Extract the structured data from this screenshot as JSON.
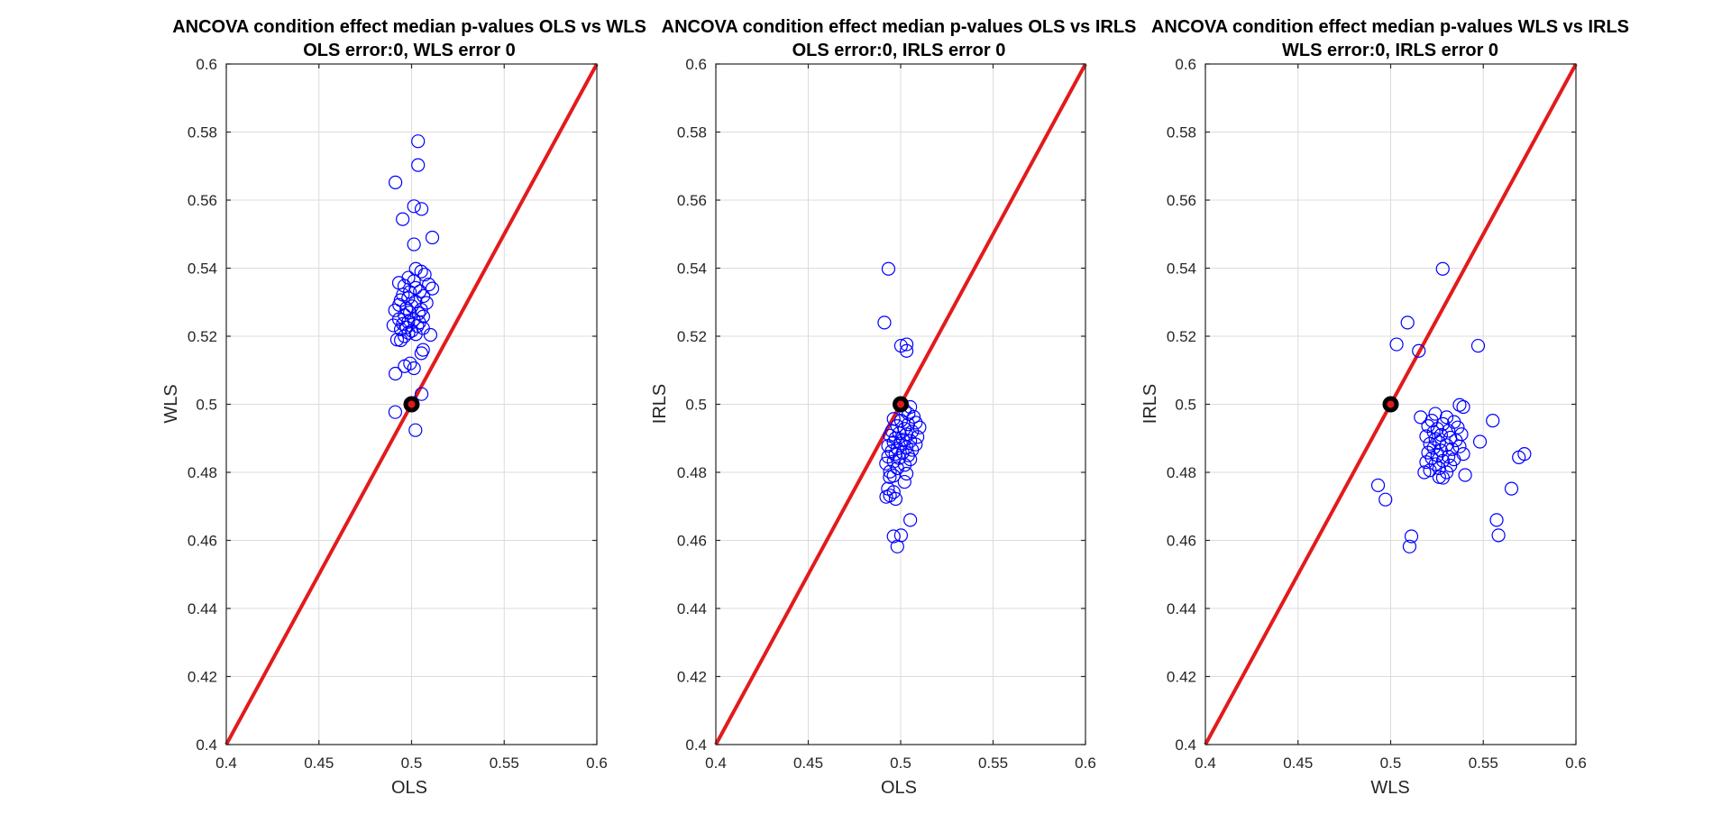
{
  "chart_data": [
    {
      "type": "scatter",
      "title": "ANCOVA condition effect median p-values OLS vs WLS",
      "subtitle": "OLS error:0, WLS error 0",
      "xlabel": "OLS",
      "ylabel": "WLS",
      "xlim": [
        0.4,
        0.6
      ],
      "ylim": [
        0.4,
        0.6
      ],
      "xticks": [
        "0.4",
        "0.45",
        "0.5",
        "0.55",
        "0.6"
      ],
      "yticks": [
        "0.4",
        "0.42",
        "0.44",
        "0.46",
        "0.48",
        "0.5",
        "0.52",
        "0.54",
        "0.56",
        "0.58",
        "0.6"
      ],
      "grid": true,
      "reference_line": {
        "from": [
          0.4,
          0.4
        ],
        "to": [
          0.6,
          0.6
        ],
        "color": "#e31a1c"
      },
      "highlight_point": {
        "x": 0.5,
        "y": 0.5
      },
      "marker_color": "#0000ff",
      "points": [
        [
          0.5035,
          0.5773
        ],
        [
          0.5035,
          0.5703
        ],
        [
          0.4913,
          0.5652
        ],
        [
          0.5013,
          0.5582
        ],
        [
          0.5054,
          0.5574
        ],
        [
          0.4952,
          0.5544
        ],
        [
          0.5112,
          0.549
        ],
        [
          0.5013,
          0.547
        ],
        [
          0.5023,
          0.5398
        ],
        [
          0.5052,
          0.539
        ],
        [
          0.5071,
          0.5381
        ],
        [
          0.4983,
          0.5372
        ],
        [
          0.5013,
          0.5362
        ],
        [
          0.4932,
          0.5357
        ],
        [
          0.5093,
          0.5352
        ],
        [
          0.4961,
          0.5348
        ],
        [
          0.5022,
          0.5342
        ],
        [
          0.5112,
          0.534
        ],
        [
          0.5045,
          0.5332
        ],
        [
          0.4991,
          0.533
        ],
        [
          0.4953,
          0.5322
        ],
        [
          0.5064,
          0.5318
        ],
        [
          0.4982,
          0.5312
        ],
        [
          0.4941,
          0.5306
        ],
        [
          0.5021,
          0.5302
        ],
        [
          0.5081,
          0.5298
        ],
        [
          0.4933,
          0.5292
        ],
        [
          0.5002,
          0.5288
        ],
        [
          0.4972,
          0.5282
        ],
        [
          0.5052,
          0.5278
        ],
        [
          0.4911,
          0.5276
        ],
        [
          0.4991,
          0.527
        ],
        [
          0.5038,
          0.5267
        ],
        [
          0.4962,
          0.5262
        ],
        [
          0.5063,
          0.5258
        ],
        [
          0.4932,
          0.525
        ],
        [
          0.5012,
          0.5248
        ],
        [
          0.4982,
          0.5242
        ],
        [
          0.5042,
          0.524
        ],
        [
          0.4953,
          0.5236
        ],
        [
          0.4902,
          0.5232
        ],
        [
          0.5031,
          0.523
        ],
        [
          0.4973,
          0.5226
        ],
        [
          0.5062,
          0.5224
        ],
        [
          0.4942,
          0.522
        ],
        [
          0.5001,
          0.5216
        ],
        [
          0.4983,
          0.521
        ],
        [
          0.5023,
          0.5206
        ],
        [
          0.5102,
          0.5204
        ],
        [
          0.4962,
          0.52
        ],
        [
          0.4922,
          0.519
        ],
        [
          0.4942,
          0.5188
        ],
        [
          0.5062,
          0.516
        ],
        [
          0.5053,
          0.515
        ],
        [
          0.4992,
          0.512
        ],
        [
          0.4963,
          0.5112
        ],
        [
          0.5013,
          0.5106
        ],
        [
          0.4913,
          0.509
        ],
        [
          0.5054,
          0.503
        ],
        [
          0.4912,
          0.4977
        ],
        [
          0.5021,
          0.4924
        ]
      ]
    },
    {
      "type": "scatter",
      "title": "ANCOVA condition effect median p-values OLS vs IRLS",
      "subtitle": "OLS error:0, IRLS error 0",
      "xlabel": "OLS",
      "ylabel": "IRLS",
      "xlim": [
        0.4,
        0.6
      ],
      "ylim": [
        0.4,
        0.6
      ],
      "xticks": [
        "0.4",
        "0.45",
        "0.5",
        "0.55",
        "0.6"
      ],
      "yticks": [
        "0.4",
        "0.42",
        "0.44",
        "0.46",
        "0.48",
        "0.5",
        "0.52",
        "0.54",
        "0.56",
        "0.58",
        "0.6"
      ],
      "grid": true,
      "reference_line": {
        "from": [
          0.4,
          0.4
        ],
        "to": [
          0.6,
          0.6
        ],
        "color": "#e31a1c"
      },
      "highlight_point": {
        "x": 0.5,
        "y": 0.5
      },
      "marker_color": "#0000ff",
      "points": [
        [
          0.4934,
          0.5398
        ],
        [
          0.4912,
          0.524
        ],
        [
          0.5032,
          0.5176
        ],
        [
          0.5002,
          0.5172
        ],
        [
          0.5032,
          0.5157
        ],
        [
          0.5052,
          0.4992
        ],
        [
          0.5022,
          0.4982
        ],
        [
          0.5043,
          0.4972
        ],
        [
          0.5071,
          0.4963
        ],
        [
          0.4962,
          0.4957
        ],
        [
          0.5002,
          0.4952
        ],
        [
          0.5082,
          0.4946
        ],
        [
          0.5041,
          0.4941
        ],
        [
          0.4981,
          0.4936
        ],
        [
          0.5102,
          0.4932
        ],
        [
          0.5021,
          0.4928
        ],
        [
          0.4952,
          0.4922
        ],
        [
          0.5062,
          0.492
        ],
        [
          0.4992,
          0.4915
        ],
        [
          0.5031,
          0.4912
        ],
        [
          0.4942,
          0.4908
        ],
        [
          0.5091,
          0.4904
        ],
        [
          0.4972,
          0.49
        ],
        [
          0.5012,
          0.4896
        ],
        [
          0.5052,
          0.4892
        ],
        [
          0.4962,
          0.4888
        ],
        [
          0.5001,
          0.4885
        ],
        [
          0.5082,
          0.4882
        ],
        [
          0.4932,
          0.4878
        ],
        [
          0.5032,
          0.4874
        ],
        [
          0.4982,
          0.487
        ],
        [
          0.5062,
          0.4866
        ],
        [
          0.4951,
          0.4862
        ],
        [
          0.5011,
          0.4858
        ],
        [
          0.4972,
          0.4854
        ],
        [
          0.5041,
          0.485
        ],
        [
          0.4932,
          0.4846
        ],
        [
          0.4992,
          0.4842
        ],
        [
          0.5052,
          0.4838
        ],
        [
          0.4962,
          0.4832
        ],
        [
          0.4921,
          0.4826
        ],
        [
          0.5022,
          0.4822
        ],
        [
          0.4982,
          0.4812
        ],
        [
          0.4942,
          0.4802
        ],
        [
          0.5032,
          0.4796
        ],
        [
          0.4962,
          0.479
        ],
        [
          0.4941,
          0.4786
        ],
        [
          0.5021,
          0.4772
        ],
        [
          0.4931,
          0.4752
        ],
        [
          0.4962,
          0.4742
        ],
        [
          0.4942,
          0.4732
        ],
        [
          0.4922,
          0.4728
        ],
        [
          0.4973,
          0.4722
        ],
        [
          0.5052,
          0.466
        ],
        [
          0.4962,
          0.4612
        ],
        [
          0.5002,
          0.4615
        ],
        [
          0.4982,
          0.4582
        ]
      ]
    },
    {
      "type": "scatter",
      "title": "ANCOVA condition effect median p-values WLS vs IRLS",
      "subtitle": "WLS error:0, IRLS error 0",
      "xlabel": "WLS",
      "ylabel": "IRLS",
      "xlim": [
        0.4,
        0.6
      ],
      "ylim": [
        0.4,
        0.6
      ],
      "xticks": [
        "0.4",
        "0.45",
        "0.5",
        "0.55",
        "0.6"
      ],
      "yticks": [
        "0.4",
        "0.42",
        "0.44",
        "0.46",
        "0.48",
        "0.5",
        "0.52",
        "0.54",
        "0.56",
        "0.58",
        "0.6"
      ],
      "grid": true,
      "reference_line": {
        "from": [
          0.4,
          0.4
        ],
        "to": [
          0.6,
          0.6
        ],
        "color": "#e31a1c"
      },
      "highlight_point": {
        "x": 0.5,
        "y": 0.5
      },
      "marker_color": "#0000ff",
      "points": [
        [
          0.5281,
          0.5398
        ],
        [
          0.5091,
          0.524
        ],
        [
          0.5032,
          0.5176
        ],
        [
          0.5472,
          0.5172
        ],
        [
          0.5152,
          0.5157
        ],
        [
          0.5392,
          0.4992
        ],
        [
          0.5372,
          0.4998
        ],
        [
          0.5551,
          0.4952
        ],
        [
          0.5162,
          0.4962
        ],
        [
          0.5241,
          0.4972
        ],
        [
          0.5302,
          0.4962
        ],
        [
          0.5222,
          0.4952
        ],
        [
          0.5342,
          0.4948
        ],
        [
          0.5282,
          0.4942
        ],
        [
          0.5202,
          0.4936
        ],
        [
          0.5362,
          0.4932
        ],
        [
          0.5252,
          0.4928
        ],
        [
          0.5312,
          0.4922
        ],
        [
          0.5232,
          0.4918
        ],
        [
          0.5382,
          0.4912
        ],
        [
          0.5272,
          0.491
        ],
        [
          0.5192,
          0.4906
        ],
        [
          0.5322,
          0.4902
        ],
        [
          0.5242,
          0.4898
        ],
        [
          0.5352,
          0.4894
        ],
        [
          0.5482,
          0.489
        ],
        [
          0.5262,
          0.4888
        ],
        [
          0.5212,
          0.4884
        ],
        [
          0.5302,
          0.488
        ],
        [
          0.5372,
          0.4876
        ],
        [
          0.5232,
          0.4872
        ],
        [
          0.5332,
          0.4868
        ],
        [
          0.5272,
          0.4864
        ],
        [
          0.5202,
          0.4858
        ],
        [
          0.5392,
          0.4854
        ],
        [
          0.5252,
          0.485
        ],
        [
          0.5722,
          0.4854
        ],
        [
          0.5312,
          0.4846
        ],
        [
          0.5692,
          0.4844
        ],
        [
          0.5222,
          0.4842
        ],
        [
          0.5342,
          0.4838
        ],
        [
          0.5282,
          0.4834
        ],
        [
          0.5192,
          0.483
        ],
        [
          0.5242,
          0.4824
        ],
        [
          0.5322,
          0.482
        ],
        [
          0.5262,
          0.4812
        ],
        [
          0.5212,
          0.4806
        ],
        [
          0.5302,
          0.48
        ],
        [
          0.5182,
          0.48
        ],
        [
          0.5402,
          0.4792
        ],
        [
          0.5262,
          0.4786
        ],
        [
          0.5282,
          0.4784
        ],
        [
          0.4932,
          0.4762
        ],
        [
          0.5652,
          0.4752
        ],
        [
          0.4972,
          0.472
        ],
        [
          0.5572,
          0.466
        ],
        [
          0.5112,
          0.4612
        ],
        [
          0.5582,
          0.4615
        ],
        [
          0.5102,
          0.4582
        ]
      ]
    }
  ]
}
